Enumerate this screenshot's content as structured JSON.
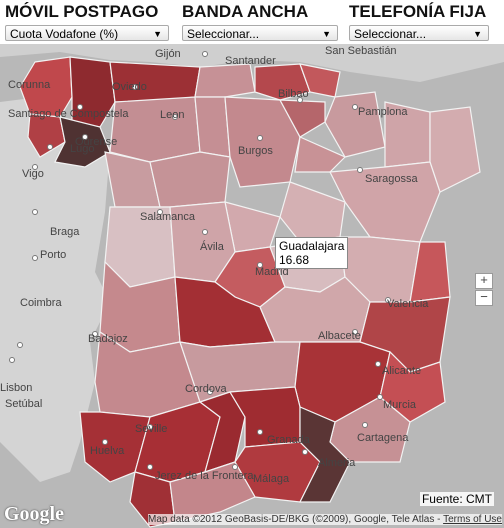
{
  "controls": [
    {
      "title": "MÓVIL POSTPAGO",
      "selected": "Cuota Vodafone (%)"
    },
    {
      "title": "BANDA ANCHA",
      "selected": "Seleccionar..."
    },
    {
      "title": "TELEFONÍA FIJA",
      "selected": "Seleccionar..."
    }
  ],
  "tooltip": {
    "region": "Guadalajara",
    "value": "16.68"
  },
  "zoom": {
    "in": "+",
    "out": "−"
  },
  "source": "Fuente: CMT",
  "attribution": {
    "text": "Map data ©2012 GeoBasis-DE/BKG (©2009), Google, Tele Atlas -",
    "terms": "Terms of Use"
  },
  "logo": "Google",
  "colors": {
    "darkest": "#5a3535",
    "dark": "#9a2e33",
    "mid": "#c04a4e",
    "light": "#c49095",
    "lightest": "#ddbbbe",
    "sea": "#b5b5b5",
    "land": "#d2d2d2"
  },
  "cities": [
    "Gijón",
    "Santander",
    "San Sebastián",
    "Corunna",
    "Oviedo",
    "Bilbao",
    "Santiago de Compostela",
    "Lugo",
    "Ourense",
    "Vigo",
    "Leon",
    "Pamplona",
    "Burgos",
    "Braga",
    "Porto",
    "Saragossa",
    "Salamanca",
    "Ávila",
    "Madrid",
    "Coimbra",
    "Valencia",
    "Badajoz",
    "Albacete",
    "Lisbon",
    "Setúbal",
    "Alicante",
    "Cordova",
    "Murcia",
    "Seville",
    "Granada",
    "Cartagena",
    "Huelva",
    "Almeria",
    "Jerez de la Frontera",
    "Málaga"
  ]
}
